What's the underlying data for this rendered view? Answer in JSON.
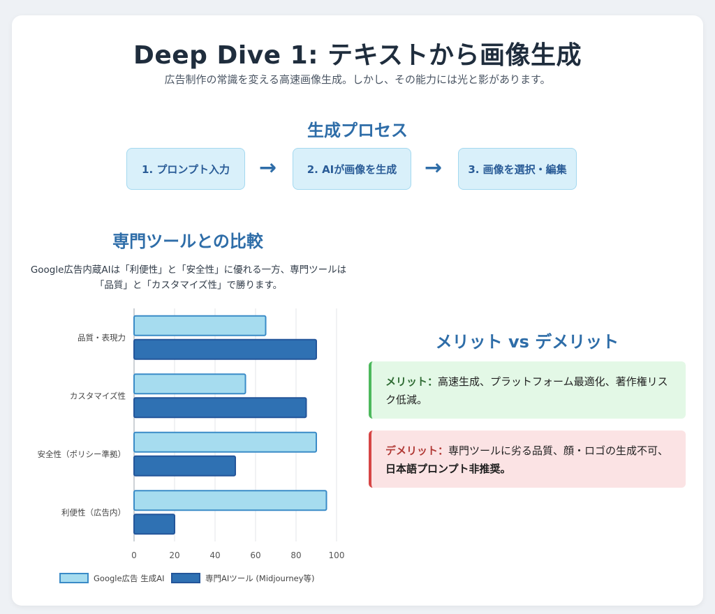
{
  "header": {
    "title": "Deep Dive 1: テキストから画像生成",
    "subtitle": "広告制作の常識を変える高速画像生成。しかし、その能力には光と影があります。"
  },
  "process": {
    "title": "生成プロセス",
    "steps": [
      {
        "label": "1. プロンプト入力"
      },
      {
        "label": "2. AIが画像を生成"
      },
      {
        "label": "3. 画像を選択・編集"
      }
    ],
    "arrow_icon": "arrow-right-icon"
  },
  "comparison": {
    "title": "専門ツールとの比較",
    "description": "Google広告内蔵AIは「利便性」と「安全性」に優れる一方、専門ツールは「品質」と「カスタマイズ性」で勝ります。"
  },
  "chart_data": {
    "type": "bar",
    "orientation": "horizontal",
    "categories": [
      "品質・表現力",
      "カスタマイズ性",
      "安全性（ポリシー準拠）",
      "利便性（広告内）"
    ],
    "series": [
      {
        "name": "Google広告 生成AI",
        "values": [
          65,
          55,
          90,
          95
        ],
        "color": "#a6dcef",
        "stroke": "#3a8bc7"
      },
      {
        "name": "専門AIツール (Midjourney等)",
        "values": [
          90,
          85,
          50,
          20
        ],
        "color": "#2f71b3",
        "stroke": "#23559a"
      }
    ],
    "xlim": [
      0,
      100
    ],
    "xticks": [
      "0",
      "20",
      "40",
      "60",
      "80",
      "100"
    ],
    "grid": true,
    "legend_position": "bottom"
  },
  "merits": {
    "title": "メリット vs デメリット",
    "merit_label": "メリット：",
    "merit_text": "高速生成、プラットフォーム最適化、著作権リスク低減。",
    "demerit_label": "デメリット：",
    "demerit_text": "専門ツールに劣る品質、顔・ロゴの生成不可、",
    "demerit_bold": "日本語プロンプト非推奨。",
    "colors": {
      "merit_accent": "#4cb85c",
      "demerit_accent": "#d64545"
    }
  }
}
